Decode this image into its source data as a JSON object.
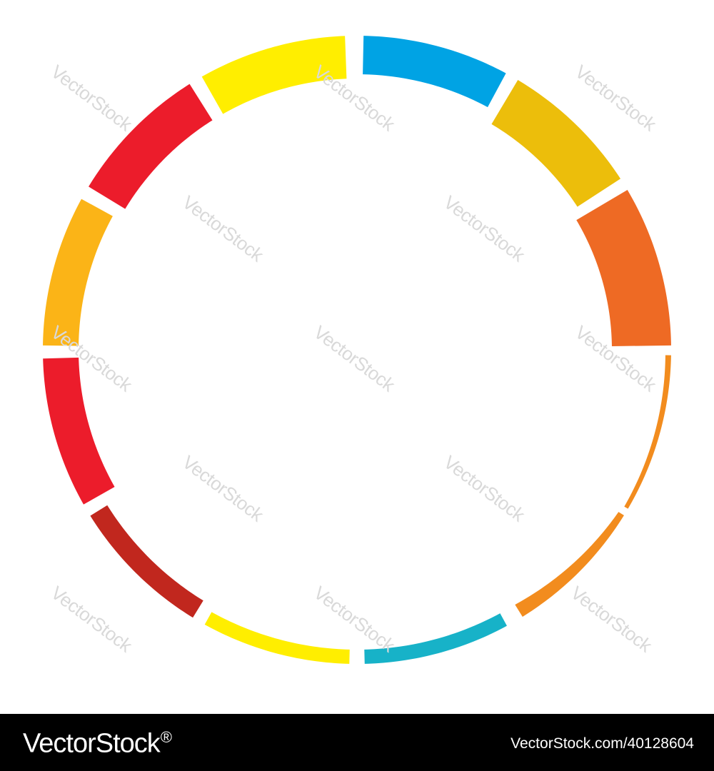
{
  "segments": [
    {
      "color": "#00A3E4"
    },
    {
      "color": "#ECBE0B"
    },
    {
      "color": "#EE6A24"
    },
    {
      "color": "#F28C1E"
    },
    {
      "color": "#F28C1E"
    },
    {
      "color": "#17B2C8"
    },
    {
      "color": "#FFEE00"
    },
    {
      "color": "#C1271E"
    },
    {
      "color": "#EC1C2B"
    },
    {
      "color": "#FBB417"
    },
    {
      "color": "#EC1C2B"
    },
    {
      "color": "#FFEE00"
    }
  ],
  "watermark": {
    "text": "VectorStock"
  },
  "footer": {
    "logo": "VectorStock",
    "logo_mark": "®",
    "image_id": "VectorStock.com/40128604"
  }
}
